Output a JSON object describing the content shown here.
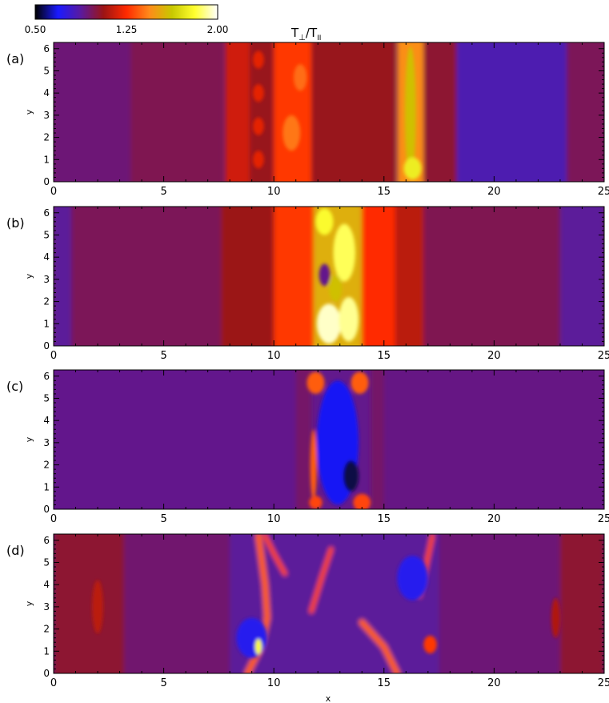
{
  "figure": {
    "colorbar": {
      "tick_labels": [
        "0.50",
        "1.25",
        "2.00"
      ],
      "ticks": [
        0.5,
        1.25,
        2.0
      ],
      "range": [
        0.5,
        2.0
      ],
      "colormap": [
        "#000000",
        "#1a1aff",
        "#5a1a9e",
        "#9c1414",
        "#ff2a00",
        "#ff8a1a",
        "#c8c800",
        "#ffff30",
        "#ffffff"
      ]
    },
    "title_main": "T",
    "title_sub_perp": "⊥",
    "title_sep": "/T",
    "title_sub_par": "II",
    "x_label": "x",
    "y_label": "y"
  },
  "chart_data": {
    "type": "heatmap",
    "quantity": "T⊥/TII",
    "xlim": [
      0,
      25
    ],
    "ylim": [
      0,
      6.28
    ],
    "x_ticks": [
      "0",
      "5",
      "10",
      "15",
      "20",
      "25"
    ],
    "y_ticks": [
      "0",
      "1",
      "2",
      "3",
      "4",
      "5",
      "6"
    ],
    "panels": [
      {
        "label": "(a)",
        "background": 0.95,
        "bands": [
          {
            "x": 0,
            "w": 3.5,
            "v": 0.93
          },
          {
            "x": 3.5,
            "w": 4.2,
            "v": 0.98
          },
          {
            "x": 7.8,
            "w": 1.1,
            "v": 1.16
          },
          {
            "x": 8.9,
            "w": 1.1,
            "v": 1.05
          },
          {
            "x": 10.0,
            "w": 1.7,
            "v": 1.28
          },
          {
            "x": 11.7,
            "w": 3.8,
            "v": 1.05
          },
          {
            "x": 15.6,
            "w": 1.2,
            "v": 1.45
          },
          {
            "x": 16.8,
            "w": 1.5,
            "v": 1.02
          },
          {
            "x": 18.3,
            "w": 5.0,
            "v": 0.84
          },
          {
            "x": 23.3,
            "w": 1.7,
            "v": 0.97
          }
        ],
        "blobs": [
          {
            "x": 16.2,
            "y": 3.1,
            "rx": 0.25,
            "ry": 3.0,
            "v": 1.6
          },
          {
            "x": 16.3,
            "y": 0.6,
            "rx": 0.4,
            "ry": 0.5,
            "v": 1.75
          },
          {
            "x": 9.3,
            "y": 5.5,
            "rx": 0.25,
            "ry": 0.4,
            "v": 1.2
          },
          {
            "x": 9.3,
            "y": 4.0,
            "rx": 0.25,
            "ry": 0.4,
            "v": 1.2
          },
          {
            "x": 9.3,
            "y": 2.5,
            "rx": 0.25,
            "ry": 0.4,
            "v": 1.2
          },
          {
            "x": 9.3,
            "y": 1.0,
            "rx": 0.25,
            "ry": 0.4,
            "v": 1.2
          },
          {
            "x": 10.8,
            "y": 2.2,
            "rx": 0.4,
            "ry": 0.8,
            "v": 1.4
          },
          {
            "x": 11.2,
            "y": 4.7,
            "rx": 0.3,
            "ry": 0.6,
            "v": 1.38
          }
        ]
      },
      {
        "label": "(b)",
        "background": 0.95,
        "bands": [
          {
            "x": 0,
            "w": 0.8,
            "v": 0.88
          },
          {
            "x": 0.8,
            "w": 6.8,
            "v": 0.97
          },
          {
            "x": 7.6,
            "w": 2.4,
            "v": 1.06
          },
          {
            "x": 10.0,
            "w": 1.8,
            "v": 1.28
          },
          {
            "x": 11.8,
            "w": 2.2,
            "v": 1.55
          },
          {
            "x": 14.0,
            "w": 1.5,
            "v": 1.25
          },
          {
            "x": 15.5,
            "w": 1.3,
            "v": 1.12
          },
          {
            "x": 16.8,
            "w": 6.2,
            "v": 0.98
          },
          {
            "x": 23.0,
            "w": 2.0,
            "v": 0.88
          }
        ],
        "blobs": [
          {
            "x": 12.5,
            "y": 1.0,
            "rx": 0.55,
            "ry": 0.9,
            "v": 1.95
          },
          {
            "x": 13.4,
            "y": 1.2,
            "rx": 0.45,
            "ry": 1.0,
            "v": 1.9
          },
          {
            "x": 13.2,
            "y": 4.2,
            "rx": 0.5,
            "ry": 1.3,
            "v": 1.85
          },
          {
            "x": 12.3,
            "y": 5.6,
            "rx": 0.4,
            "ry": 0.6,
            "v": 1.8
          },
          {
            "x": 12.3,
            "y": 3.2,
            "rx": 0.25,
            "ry": 0.5,
            "v": 0.9
          },
          {
            "x": 12.8,
            "y": 2.6,
            "rx": 0.3,
            "ry": 0.6,
            "v": 1.6
          }
        ]
      },
      {
        "label": "(c)",
        "background": 0.9,
        "bands": [
          {
            "x": 0,
            "w": 11.0,
            "v": 0.9
          },
          {
            "x": 11.0,
            "w": 0.7,
            "v": 0.95
          },
          {
            "x": 14.4,
            "w": 0.6,
            "v": 0.95
          },
          {
            "x": 15.0,
            "w": 10.0,
            "v": 0.91
          }
        ],
        "blobs": [
          {
            "x": 12.9,
            "y": 3.0,
            "rx": 0.95,
            "ry": 2.8,
            "v": 0.68
          },
          {
            "x": 13.5,
            "y": 1.5,
            "rx": 0.35,
            "ry": 0.7,
            "v": 0.55
          },
          {
            "x": 11.9,
            "y": 5.7,
            "rx": 0.4,
            "ry": 0.5,
            "v": 1.35
          },
          {
            "x": 13.9,
            "y": 5.7,
            "rx": 0.4,
            "ry": 0.5,
            "v": 1.35
          },
          {
            "x": 11.8,
            "y": 2.0,
            "rx": 0.15,
            "ry": 1.6,
            "v": 1.35
          },
          {
            "x": 14.0,
            "y": 0.3,
            "rx": 0.4,
            "ry": 0.4,
            "v": 1.3
          },
          {
            "x": 11.9,
            "y": 0.3,
            "rx": 0.3,
            "ry": 0.3,
            "v": 1.3
          }
        ]
      },
      {
        "label": "(d)",
        "background": 0.9,
        "bands": [
          {
            "x": 0,
            "w": 3.2,
            "v": 1.02
          },
          {
            "x": 3.2,
            "w": 4.8,
            "v": 0.94
          },
          {
            "x": 8.0,
            "w": 9.5,
            "v": 0.88
          },
          {
            "x": 17.5,
            "w": 5.5,
            "v": 0.93
          },
          {
            "x": 23.0,
            "w": 2.0,
            "v": 1.02
          }
        ],
        "blobs": [
          {
            "x": 9.0,
            "y": 1.6,
            "rx": 0.7,
            "ry": 0.9,
            "v": 0.72
          },
          {
            "x": 16.3,
            "y": 4.3,
            "rx": 0.7,
            "ry": 1.0,
            "v": 0.72
          },
          {
            "x": 9.3,
            "y": 1.2,
            "rx": 0.15,
            "ry": 0.35,
            "v": 1.8
          },
          {
            "x": 17.1,
            "y": 1.3,
            "rx": 0.3,
            "ry": 0.4,
            "v": 1.28
          },
          {
            "x": 2.0,
            "y": 3.0,
            "rx": 0.25,
            "ry": 1.2,
            "v": 1.12
          },
          {
            "x": 22.8,
            "y": 2.5,
            "rx": 0.2,
            "ry": 0.9,
            "v": 1.1
          }
        ],
        "streaks": [
          {
            "points": [
              [
                8.8,
                0.0
              ],
              [
                9.4,
                1.2
              ],
              [
                9.7,
                2.5
              ],
              [
                9.6,
                4.0
              ],
              [
                9.3,
                6.2
              ]
            ],
            "v": 1.35,
            "width": 4
          },
          {
            "points": [
              [
                11.7,
                2.8
              ],
              [
                12.2,
                4.4
              ],
              [
                12.6,
                5.6
              ]
            ],
            "v": 1.3,
            "width": 3
          },
          {
            "points": [
              [
                14.0,
                2.3
              ],
              [
                15.0,
                1.2
              ],
              [
                15.6,
                0.0
              ]
            ],
            "v": 1.35,
            "width": 4
          },
          {
            "points": [
              [
                16.6,
                3.5
              ],
              [
                16.9,
                4.8
              ],
              [
                17.2,
                6.2
              ]
            ],
            "v": 1.3,
            "width": 3
          },
          {
            "points": [
              [
                9.6,
                6.2
              ],
              [
                10.0,
                5.4
              ],
              [
                10.5,
                4.5
              ]
            ],
            "v": 1.3,
            "width": 3
          }
        ]
      }
    ]
  }
}
